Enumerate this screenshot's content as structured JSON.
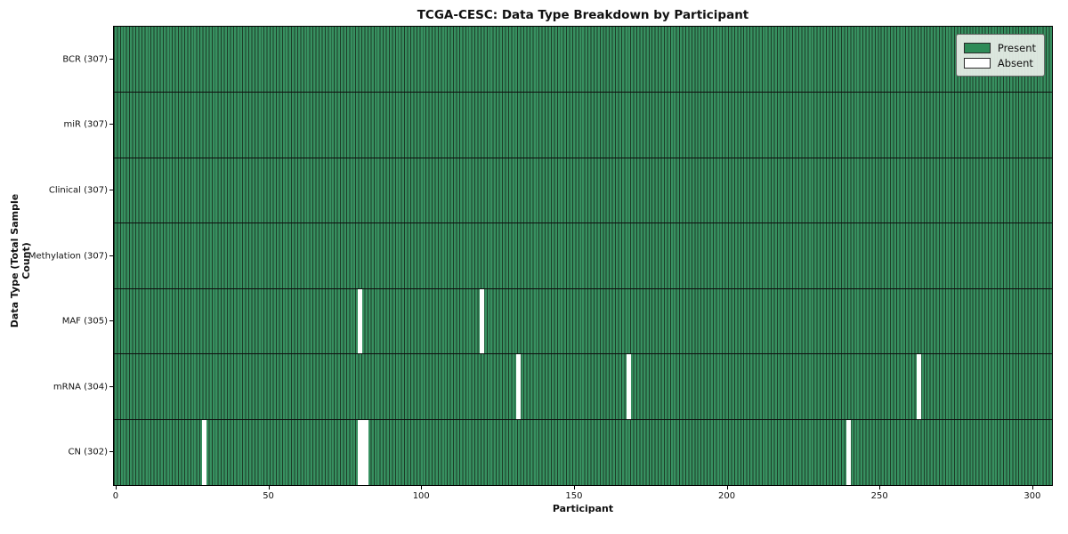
{
  "title": "TCGA-CESC: Data Type Breakdown by Participant",
  "chart_data": {
    "type": "heatmap",
    "title": "TCGA-CESC: Data Type Breakdown by Participant",
    "xlabel": "Participant",
    "ylabel": "Data Type (Total Sample Count)",
    "n_participants": 307,
    "xlim": [
      -0.5,
      306.5
    ],
    "x_ticks": [
      0,
      50,
      100,
      150,
      200,
      250,
      300
    ],
    "grid": "row-separators-and-column-edges",
    "legend_position": "upper right",
    "rows": [
      {
        "label": "BCR (307)",
        "data_type": "BCR",
        "total_samples": 307,
        "absent_participants": []
      },
      {
        "label": "miR (307)",
        "data_type": "miR",
        "total_samples": 307,
        "absent_participants": []
      },
      {
        "label": "Clinical (307)",
        "data_type": "Clinical",
        "total_samples": 307,
        "absent_participants": []
      },
      {
        "label": "Methylation (307)",
        "data_type": "Methylation",
        "total_samples": 307,
        "absent_participants": []
      },
      {
        "label": "MAF (305)",
        "data_type": "MAF",
        "total_samples": 305,
        "absent_participants": [
          80,
          120
        ]
      },
      {
        "label": "mRNA (304)",
        "data_type": "mRNA",
        "total_samples": 304,
        "absent_participants": [
          132,
          168,
          263
        ]
      },
      {
        "label": "CN (302)",
        "data_type": "CN",
        "total_samples": 302,
        "absent_participants": [
          29,
          80,
          81,
          82,
          240
        ]
      }
    ],
    "legend": [
      {
        "label": "Present",
        "color": "#2e8b57"
      },
      {
        "label": "Absent",
        "color": "#ffffff"
      }
    ],
    "colors": {
      "present": "#2e8b57",
      "present_stripe_body": "#379060",
      "column_edge": "#1d3d28",
      "absent": "#ffffff",
      "row_separator": "#0d0d0d",
      "spine": "#000000"
    }
  }
}
